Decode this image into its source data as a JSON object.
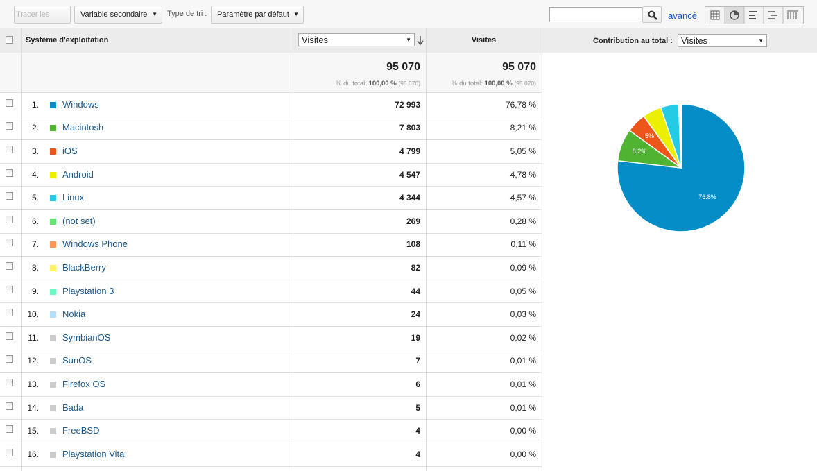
{
  "toolbar": {
    "plot_rows": "Tracer les lignes",
    "secondary_dimension": "Variable secondaire",
    "sort_type_label": "Type de tri :",
    "sort_type": "Paramètre par défaut",
    "advanced": "avancé"
  },
  "table": {
    "headers": {
      "dimension": "Système d'exploitation",
      "metric_select": "Visites",
      "metric": "Visites",
      "contribution_label": "Contribution au total :",
      "contribution_select": "Visites"
    },
    "totals": [
      {
        "value": "95 070",
        "label": "% du total:",
        "percent": "100,00 %",
        "of": "(95 070)"
      },
      {
        "value": "95 070",
        "label": "% du total:",
        "percent": "100,00 %",
        "of": "(95 070)"
      }
    ],
    "rows": [
      {
        "rank": "1.",
        "name": "Windows",
        "color": "#058dc7",
        "visits": "72 993",
        "percent": "76,78 %"
      },
      {
        "rank": "2.",
        "name": "Macintosh",
        "color": "#50b432",
        "visits": "7 803",
        "percent": "8,21 %"
      },
      {
        "rank": "3.",
        "name": "iOS",
        "color": "#ed561b",
        "visits": "4 799",
        "percent": "5,05 %"
      },
      {
        "rank": "4.",
        "name": "Android",
        "color": "#edef00",
        "visits": "4 547",
        "percent": "4,78 %"
      },
      {
        "rank": "5.",
        "name": "Linux",
        "color": "#24cbe5",
        "visits": "4 344",
        "percent": "4,57 %"
      },
      {
        "rank": "6.",
        "name": "(not set)",
        "color": "#64e572",
        "visits": "269",
        "percent": "0,28 %"
      },
      {
        "rank": "7.",
        "name": "Windows Phone",
        "color": "#ff9655",
        "visits": "108",
        "percent": "0,11 %"
      },
      {
        "rank": "8.",
        "name": "BlackBerry",
        "color": "#fff263",
        "visits": "82",
        "percent": "0,09 %"
      },
      {
        "rank": "9.",
        "name": "Playstation 3",
        "color": "#6af9c4",
        "visits": "44",
        "percent": "0,05 %"
      },
      {
        "rank": "10.",
        "name": "Nokia",
        "color": "#b2deff",
        "visits": "24",
        "percent": "0,03 %"
      },
      {
        "rank": "11.",
        "name": "SymbianOS",
        "color": "#cccccc",
        "visits": "19",
        "percent": "0,02 %"
      },
      {
        "rank": "12.",
        "name": "SunOS",
        "color": "#cccccc",
        "visits": "7",
        "percent": "0,01 %"
      },
      {
        "rank": "13.",
        "name": "Firefox OS",
        "color": "#cccccc",
        "visits": "6",
        "percent": "0,01 %"
      },
      {
        "rank": "14.",
        "name": "Bada",
        "color": "#cccccc",
        "visits": "5",
        "percent": "0,01 %"
      },
      {
        "rank": "15.",
        "name": "FreeBSD",
        "color": "#cccccc",
        "visits": "4",
        "percent": "0,00 %"
      },
      {
        "rank": "16.",
        "name": "Playstation Vita",
        "color": "#cccccc",
        "visits": "4",
        "percent": "0,00 %"
      }
    ]
  },
  "pie": {
    "labels": [
      "76.8%",
      "8.2%",
      "5%"
    ]
  }
}
